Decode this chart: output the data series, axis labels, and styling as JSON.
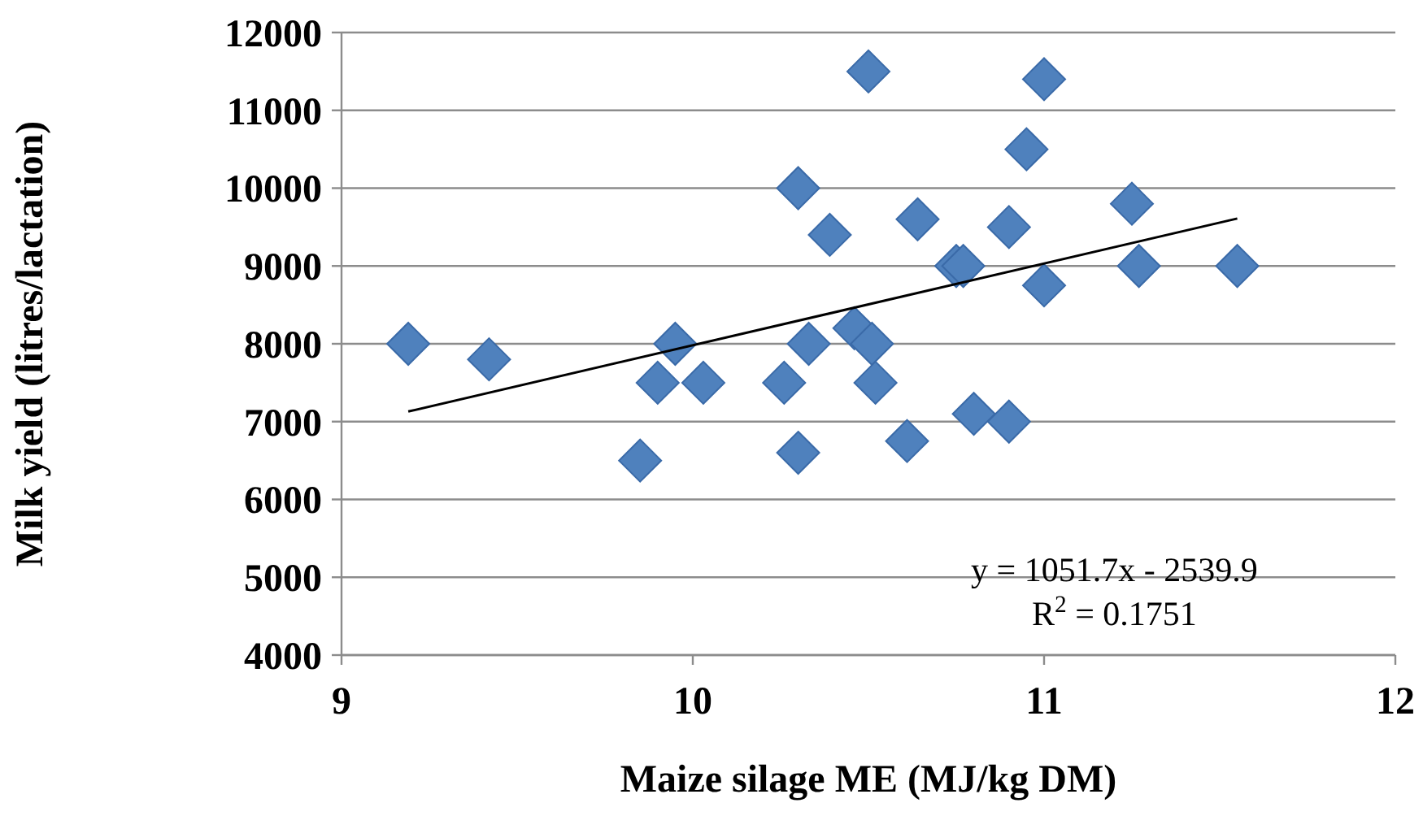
{
  "chart_data": {
    "type": "scatter",
    "xlabel": "Maize silage ME (MJ/kg DM)",
    "ylabel": "Milk yield (litres/lactation)",
    "xlim": [
      9,
      12
    ],
    "xticks": [
      9,
      10,
      11,
      12
    ],
    "ylim": [
      4000,
      12000
    ],
    "yticks": [
      4000,
      5000,
      6000,
      7000,
      8000,
      9000,
      10000,
      11000,
      12000
    ],
    "grid": "y",
    "marker": "diamond",
    "series": [
      {
        "color": "#4f81bd",
        "x": [
          9.19,
          9.42,
          9.95,
          9.9,
          10.03,
          9.85,
          10.26,
          10.3,
          10.3,
          10.33,
          10.39,
          10.46,
          10.51,
          10.52,
          10.5,
          10.61,
          10.64,
          10.75,
          10.77,
          10.8,
          10.9,
          10.9,
          10.95,
          11.0,
          11.0,
          11.25,
          11.27,
          11.55
        ],
        "values": [
          8000,
          7800,
          8000,
          7500,
          7500,
          6500,
          7500,
          10000,
          6600,
          8000,
          9400,
          8200,
          8000,
          7500,
          11500,
          6750,
          9600,
          9000,
          9000,
          7100,
          9500,
          7000,
          10500,
          11400,
          8750,
          9800,
          9000,
          9000
        ]
      },
      {
        "type": "line",
        "color": "#000000",
        "marker": "none",
        "line_style": "solid",
        "x": [
          9.19,
          11.55
        ],
        "values": [
          7130,
          9610
        ]
      }
    ],
    "annotations": [
      "y = 1051.7x - 2539.9",
      "R$^{2}$ = 0.1751"
    ]
  }
}
